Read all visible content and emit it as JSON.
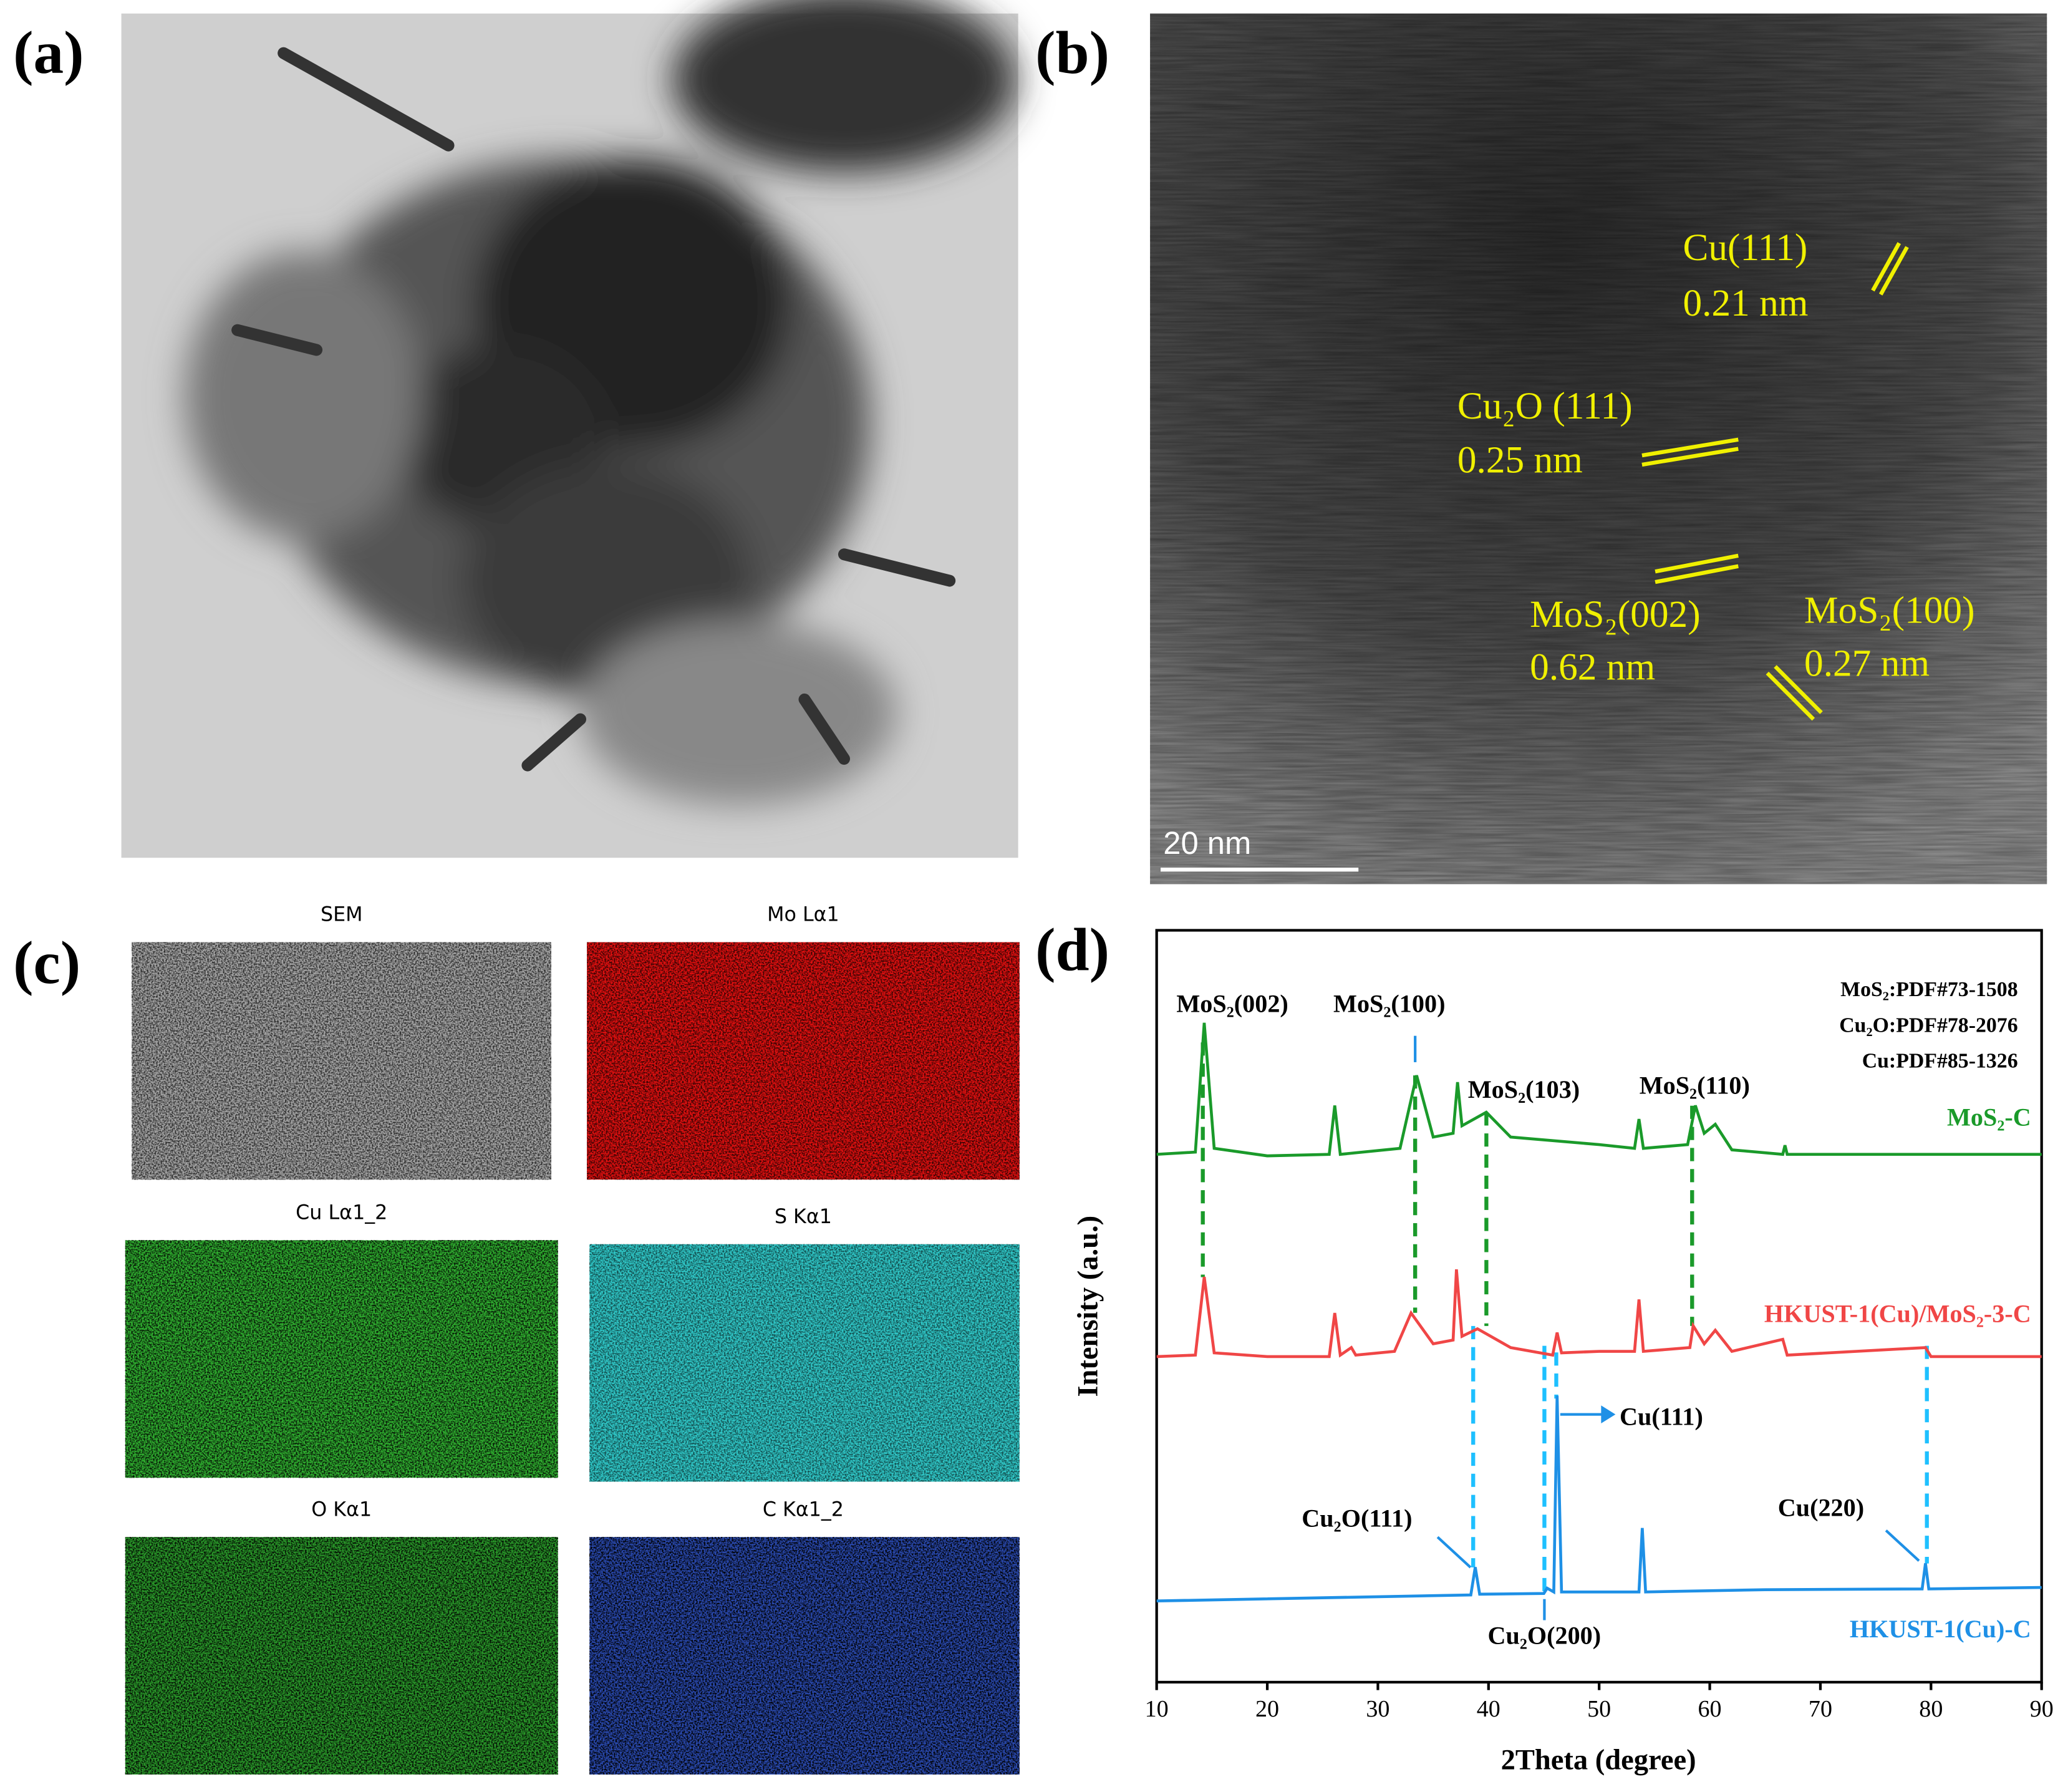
{
  "panels": {
    "a": {
      "label": "(a)"
    },
    "b": {
      "label": "(b)",
      "annotations": [
        "Cu(111)",
        "0.21 nm",
        "Cu₂O (111)",
        "0.25 nm",
        "MoS₂(002)",
        "0.62 nm",
        "MoS₂(100)",
        "0.27 nm"
      ],
      "scale_bar": "20 nm"
    },
    "c": {
      "label": "(c)",
      "maps": [
        "SEM",
        "Mo Lα1",
        "Cu Lα1_2",
        "S Kα1",
        "O Kα1",
        "C Kα1_2"
      ]
    },
    "d": {
      "label": "(d)",
      "chart_data": {
        "type": "line",
        "xlabel": "2Theta (degree)",
        "ylabel": "Intensity (a.u.)",
        "references": [
          "MoS₂:PDF#73-1508",
          "Cu₂O:PDF#78-2076",
          "Cu:PDF#85-1326"
        ],
        "annotations": [
          "MoS₂(002)",
          "MoS₂(100)",
          "MoS₂(103)",
          "MoS₂(110)",
          "Cu₂O(111)",
          "Cu(111)",
          "Cu₂O(200)",
          "Cu(220)"
        ],
        "xlim": [
          10,
          90
        ],
        "xticks": [
          10,
          20,
          30,
          40,
          50,
          60,
          70,
          80,
          90
        ],
        "ylim": [
          0,
          100
        ],
        "series": [
          {
            "name": "MoS₂-C",
            "color": "#1a9a2a",
            "x": [
              10,
              13.5,
              14.3,
              15.2,
              20,
              25.6,
              26.1,
              26.6,
              32,
              33.5,
              35,
              36.8,
              37.2,
              37.6,
              39.8,
              42,
              50,
              53.2,
              53.6,
              54,
              58,
              58.7,
              59.5,
              60.5,
              62,
              66.6,
              66.8,
              67,
              80,
              90
            ],
            "values": [
              70.2,
              70.5,
              87.7,
              71,
              70,
              70.2,
              76.7,
              70.2,
              71,
              80.7,
              72.5,
              73,
              79.8,
              74,
              75.8,
              72.5,
              71.5,
              71,
              74.9,
              71,
              71.5,
              76.7,
              73,
              74.2,
              70.8,
              70.2,
              71.4,
              70.2,
              70.2,
              70.2
            ]
          },
          {
            "name": "HKUST-1(Cu)/MoS₂-3-C",
            "color": "#f04646",
            "x": [
              10,
              13.5,
              14.3,
              15.2,
              20,
              25.6,
              26.1,
              26.6,
              27.6,
              28,
              31.5,
              33,
              35,
              36.8,
              37.1,
              37.6,
              39,
              42,
              45.8,
              46.2,
              46.6,
              50,
              53.2,
              53.6,
              54,
              58.2,
              58.5,
              59.5,
              60.5,
              62,
              66.6,
              67,
              79.5,
              80,
              90
            ],
            "values": [
              43.3,
              43.5,
              53.9,
              43.8,
              43.3,
              43.3,
              49.1,
              43.5,
              44.5,
              43.5,
              44,
              49.1,
              45,
              45.5,
              54.9,
              46,
              47,
              44.5,
              43.5,
              46.5,
              43.8,
              44,
              44,
              50.9,
              44,
              44.5,
              47.4,
              45,
              46.8,
              44,
              45.6,
              43.5,
              44.5,
              43.3,
              43.3
            ]
          },
          {
            "name": "HKUST-1(Cu)-C",
            "color": "#1e90e6",
            "x": [
              10,
              38.4,
              38.8,
              39.2,
              45,
              45.3,
              45.9,
              46.2,
              46.6,
              53.6,
              53.9,
              54.2,
              65,
              79.2,
              79.5,
              79.8,
              90
            ],
            "values": [
              10.8,
              11.6,
              15.3,
              11.7,
              11.8,
              12.5,
              12,
              38.1,
              12,
              12,
              20.5,
              12,
              12.3,
              12.4,
              15.8,
              12.4,
              12.6
            ]
          }
        ]
      }
    }
  }
}
